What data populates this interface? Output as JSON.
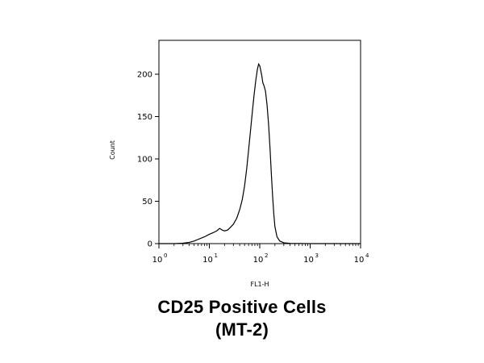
{
  "chart_data": {
    "type": "line",
    "title_lines": [
      "CD25 Positive Cells",
      "(MT-2)"
    ],
    "xlabel": "FL1-H",
    "ylabel": "Count",
    "xscale": "log",
    "xlim": [
      1,
      10000
    ],
    "ylim": [
      0,
      240
    ],
    "xticks": [
      {
        "base": "10",
        "exp": "0",
        "value": 1
      },
      {
        "base": "10",
        "exp": "1",
        "value": 10
      },
      {
        "base": "10",
        "exp": "2",
        "value": 100
      },
      {
        "base": "10",
        "exp": "3",
        "value": 1000
      },
      {
        "base": "10",
        "exp": "4",
        "value": 10000
      }
    ],
    "yticks": [
      "0",
      "50",
      "100",
      "150",
      "200"
    ],
    "grid": false,
    "series": [
      {
        "color": "#000000",
        "points": [
          [
            1,
            0
          ],
          [
            2,
            0
          ],
          [
            3,
            0.5
          ],
          [
            4,
            1.5
          ],
          [
            5,
            3
          ],
          [
            6,
            5
          ],
          [
            8,
            8
          ],
          [
            10,
            11
          ],
          [
            12,
            13
          ],
          [
            14,
            15
          ],
          [
            16,
            18
          ],
          [
            18,
            16
          ],
          [
            20,
            15
          ],
          [
            23,
            16
          ],
          [
            26,
            19
          ],
          [
            30,
            23
          ],
          [
            35,
            30
          ],
          [
            40,
            40
          ],
          [
            45,
            52
          ],
          [
            50,
            68
          ],
          [
            55,
            88
          ],
          [
            60,
            110
          ],
          [
            66,
            135
          ],
          [
            72,
            158
          ],
          [
            78,
            178
          ],
          [
            84,
            194
          ],
          [
            90,
            206
          ],
          [
            95,
            212
          ],
          [
            100,
            210
          ],
          [
            105,
            204
          ],
          [
            110,
            198
          ],
          [
            115,
            190
          ],
          [
            122,
            186
          ],
          [
            130,
            180
          ],
          [
            140,
            163
          ],
          [
            150,
            140
          ],
          [
            160,
            112
          ],
          [
            170,
            82
          ],
          [
            180,
            56
          ],
          [
            190,
            35
          ],
          [
            200,
            20
          ],
          [
            220,
            8
          ],
          [
            250,
            3
          ],
          [
            300,
            1
          ],
          [
            400,
            0.3
          ],
          [
            1000,
            0
          ],
          [
            10000,
            0
          ]
        ]
      }
    ]
  }
}
